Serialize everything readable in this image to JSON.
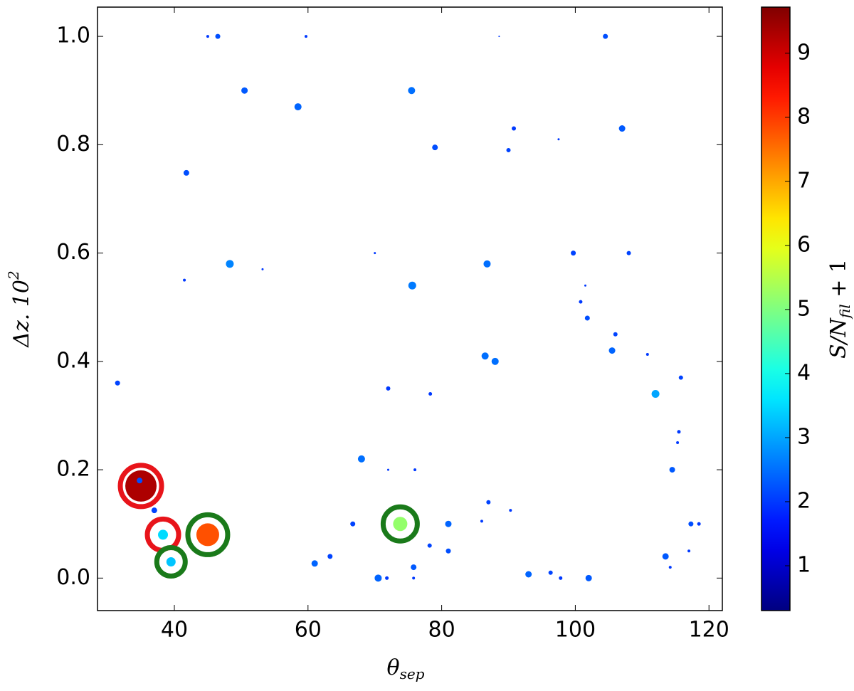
{
  "chart_data": {
    "type": "scatter",
    "xlabel": {
      "main": "θ",
      "sub": "sep"
    },
    "ylabel": {
      "main": "Δz. 10",
      "sup": "2"
    },
    "xlim": [
      28.5,
      122
    ],
    "ylim": [
      -0.06,
      1.054
    ],
    "xticks": [
      40,
      60,
      80,
      100,
      120
    ],
    "yticks": [
      {
        "value": 0,
        "label": "0.0"
      },
      {
        "value": 0.2,
        "label": "0.2"
      },
      {
        "value": 0.4,
        "label": "0.4"
      },
      {
        "value": 0.6,
        "label": "0.6"
      },
      {
        "value": 0.8,
        "label": "0.8"
      },
      {
        "value": 1,
        "label": "1.0"
      }
    ],
    "series": [
      {
        "x": [
          45,
          46.5,
          59.7,
          88.6,
          104.5,
          50.5,
          75.5,
          58.5,
          79,
          90.8,
          90,
          97.5,
          107,
          41.8,
          41.5,
          48.3,
          53.2,
          70,
          75.6,
          86.8,
          99.7,
          108,
          101.5,
          100.8,
          101.8,
          106,
          105.5,
          110.8,
          31.5,
          86.5,
          88,
          72,
          78.3,
          115.8,
          112,
          115.5,
          115.3,
          68,
          72,
          76,
          114.5,
          35,
          34.8,
          37,
          38.3,
          45,
          39.5,
          73.8,
          66.7,
          87,
          90.3,
          86,
          81,
          78.2,
          81,
          63.3,
          61,
          75.8,
          70.5,
          71.8,
          75.8,
          93,
          96.3,
          97.8,
          102,
          113.5,
          114.2,
          117.3,
          118.5,
          117
        ],
        "values": [
          1.0,
          1.0,
          1.0,
          1.0,
          1.0,
          0.9,
          0.9,
          0.87,
          0.795,
          0.83,
          0.79,
          0.81,
          0.83,
          0.748,
          0.55,
          0.58,
          0.57,
          0.6,
          0.54,
          0.58,
          0.6,
          0.6,
          0.54,
          0.51,
          0.48,
          0.45,
          0.42,
          0.413,
          0.36,
          0.41,
          0.4,
          0.35,
          0.34,
          0.37,
          0.34,
          0.27,
          0.25,
          0.22,
          0.2,
          0.2,
          0.2,
          0.17,
          0.18,
          0.125,
          0.08,
          0.08,
          0.03,
          0.1,
          0.1,
          0.14,
          0.125,
          0.105,
          0.1,
          0.06,
          0.05,
          0.04,
          0.027,
          0.02,
          0.0,
          0.0,
          0.0,
          0.007,
          0.01,
          0.0,
          0.0,
          0.04,
          0.02,
          0.1,
          0.1,
          0.05
        ],
        "sizes": [
          2,
          3.5,
          2,
          1,
          3.5,
          4.5,
          5,
          5,
          4,
          3,
          3,
          1.5,
          4.5,
          4,
          2,
          5.5,
          1.5,
          1.5,
          5.5,
          5,
          3.5,
          3,
          1.5,
          2.5,
          3.5,
          3,
          4.5,
          2,
          3.5,
          5,
          5,
          3,
          2.5,
          3,
          5.5,
          2.5,
          2,
          5,
          1.5,
          2,
          4,
          22,
          4,
          4,
          7,
          16,
          6.5,
          10,
          3.5,
          3,
          2,
          2,
          4.5,
          3,
          3.5,
          3.5,
          4.5,
          4,
          5,
          2.5,
          2,
          4.5,
          3,
          2.5,
          4.5,
          4.5,
          2,
          3.5,
          2.5,
          2
        ],
        "c": [
          2,
          2.2,
          2,
          2,
          2.2,
          2.3,
          2.5,
          2.4,
          2.2,
          2,
          2.1,
          2,
          2.3,
          2.2,
          2,
          2.7,
          2,
          2,
          2.6,
          2.5,
          2.1,
          2.1,
          2,
          2,
          2.2,
          2.1,
          2.4,
          2,
          2.1,
          2.5,
          2.5,
          2,
          2,
          2.1,
          3,
          2,
          2,
          2.5,
          2,
          2,
          2.3,
          9.3,
          2.2,
          2.1,
          3.5,
          7.8,
          3.3,
          5.2,
          2.1,
          2.1,
          2,
          2,
          2.4,
          2.1,
          2.2,
          2.1,
          2.4,
          2.3,
          2.4,
          2,
          2,
          2.4,
          2.1,
          2,
          2.3,
          2.3,
          2,
          2.2,
          2,
          2
        ]
      }
    ],
    "rings": [
      {
        "x": 35,
        "y": 0.17,
        "size": 29,
        "color": "#e8141a"
      },
      {
        "x": 38.3,
        "y": 0.08,
        "size": 22,
        "color": "#e8141a"
      },
      {
        "x": 45,
        "y": 0.08,
        "size": 28,
        "color": "#1a7a1a"
      },
      {
        "x": 39.5,
        "y": 0.03,
        "size": 20,
        "color": "#1a7a1a"
      },
      {
        "x": 73.8,
        "y": 0.1,
        "size": 24,
        "color": "#1a7a1a"
      }
    ],
    "colorbar": {
      "colormap": "jet",
      "lim": [
        0.3,
        9.72
      ],
      "ticks": [
        1,
        2,
        3,
        4,
        5,
        6,
        7,
        8,
        9
      ],
      "label": {
        "main": "S/N",
        "sub": "fil",
        "after": " + 1"
      }
    }
  }
}
